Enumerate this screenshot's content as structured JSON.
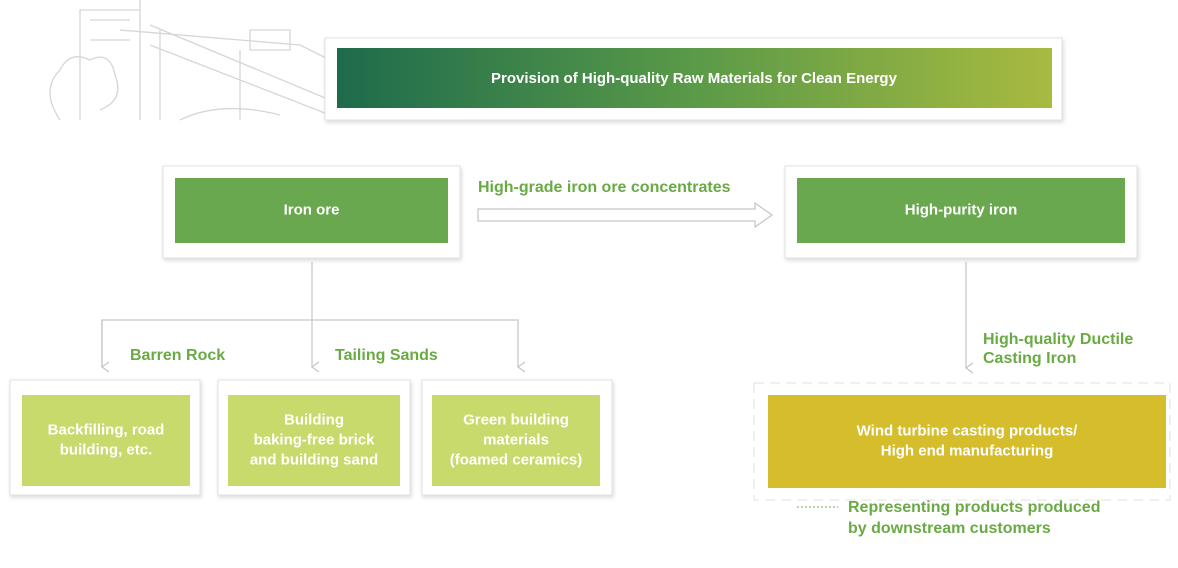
{
  "banner": {
    "title": "Provision of High-quality Raw Materials for Clean Energy"
  },
  "nodes": [
    {
      "label": [
        "Iron ore"
      ]
    },
    {
      "label": [
        "High-purity iron"
      ]
    },
    {
      "label": [
        "Backfilling, road",
        "building, etc."
      ]
    },
    {
      "label": [
        "Building",
        "baking-free brick",
        "and building sand"
      ]
    },
    {
      "label": [
        "Green building",
        "materials",
        "(foamed ceramics)"
      ]
    },
    {
      "label": [
        "Wind turbine casting products/",
        "High end manufacturing"
      ]
    }
  ],
  "edges": [
    {
      "label": [
        "High-grade iron ore concentrates"
      ]
    },
    {
      "label": [
        "Barren Rock"
      ]
    },
    {
      "label": [
        "Tailing Sands"
      ]
    },
    {
      "label": [
        "High-quality Ductile",
        "Casting Iron"
      ]
    }
  ],
  "legend": {
    "label": [
      "Representing products produced",
      "by downstream customers"
    ]
  }
}
